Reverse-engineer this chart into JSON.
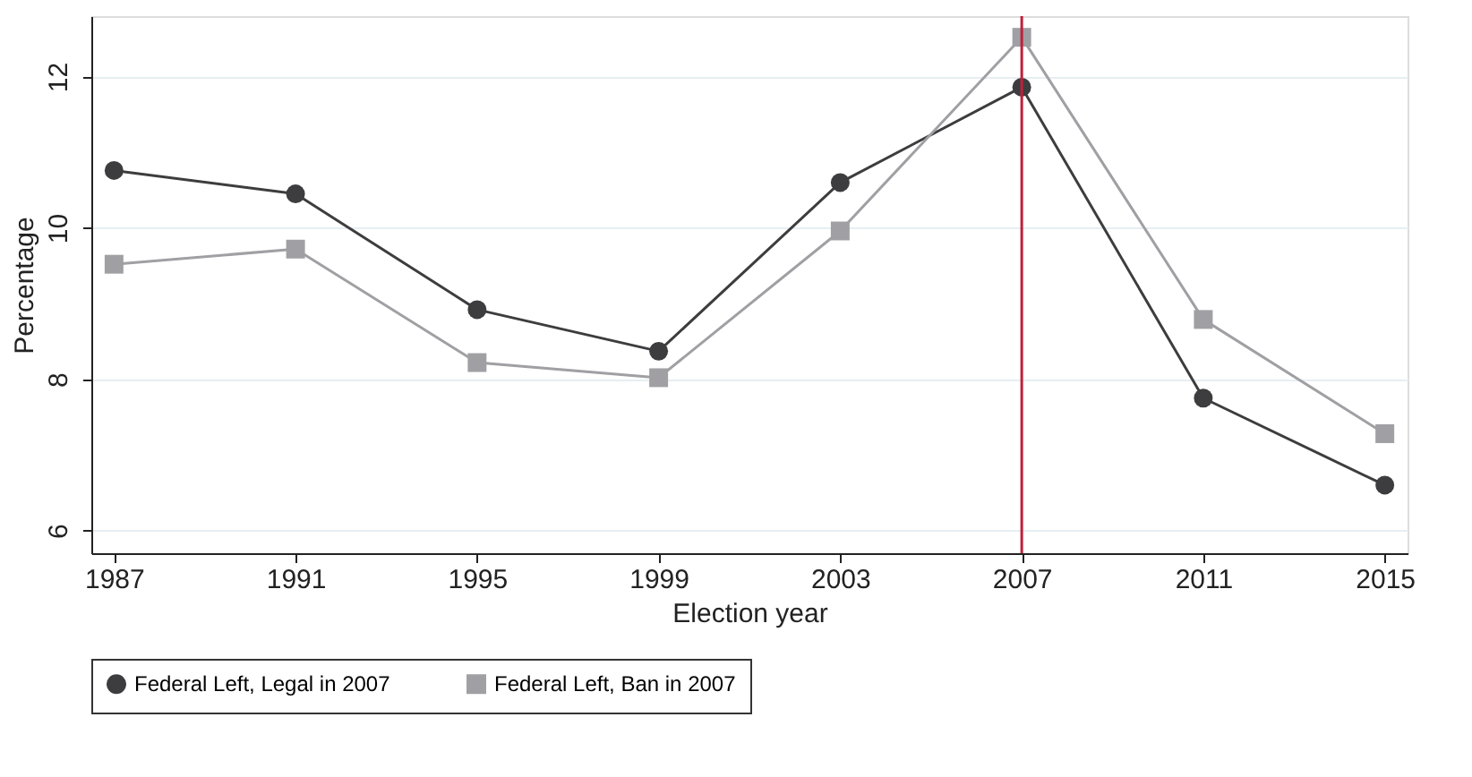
{
  "chart_data": {
    "type": "line",
    "xlabel": "Election year",
    "ylabel": "Percentage",
    "x": [
      1987,
      1991,
      1995,
      1999,
      2003,
      2007,
      2011,
      2015
    ],
    "xlim": [
      1986.5,
      2015.5
    ],
    "xticks": [
      1987,
      1991,
      1995,
      1999,
      2003,
      2007,
      2011,
      2015
    ],
    "ylim": [
      5.7,
      12.8
    ],
    "yticks": [
      6,
      8,
      10,
      12
    ],
    "grid": "y",
    "legend": "bottom",
    "line_style": "solid",
    "series": [
      {
        "name": "Federal Left, Legal in 2007",
        "color": "#3d3d3f",
        "marker": "circle",
        "values": [
          10.76,
          10.45,
          8.92,
          8.37,
          10.6,
          11.86,
          7.75,
          6.6
        ]
      },
      {
        "name": "Federal Left, Ban in 2007",
        "color": "#a0a0a4",
        "marker": "square",
        "values": [
          9.52,
          9.72,
          8.22,
          8.02,
          9.96,
          12.52,
          8.79,
          7.28
        ]
      }
    ],
    "ref_lines": [
      {
        "axis": "x",
        "value": 2007,
        "color": "#c0203a"
      }
    ]
  }
}
